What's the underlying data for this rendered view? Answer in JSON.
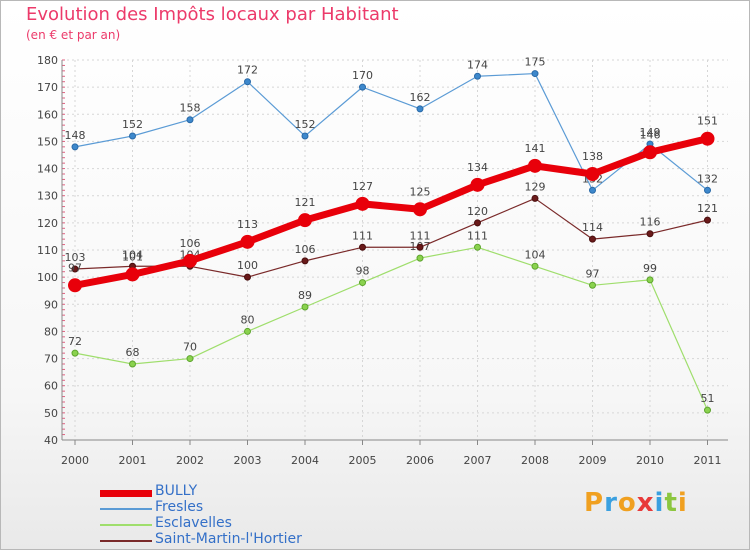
{
  "chart_data": {
    "type": "line",
    "title": "Evolution des Impôts locaux par Habitant",
    "subtitle": "(en € et par an)",
    "xlabel": "",
    "ylabel": "",
    "x": [
      "2000",
      "2001",
      "2002",
      "2003",
      "2004",
      "2005",
      "2006",
      "2007",
      "2008",
      "2009",
      "2010",
      "2011"
    ],
    "ylim": [
      40,
      180
    ],
    "yticks": [
      40,
      50,
      60,
      70,
      80,
      90,
      100,
      110,
      120,
      130,
      140,
      150,
      160,
      170,
      180
    ],
    "grid": true,
    "legend_position": "bottom-left",
    "series": [
      {
        "name": "BULLY",
        "color": "#e8000a",
        "values": [
          97,
          101,
          106,
          113,
          121,
          127,
          125,
          134,
          141,
          138,
          146,
          151
        ]
      },
      {
        "name": "Fresles",
        "color": "#5b9bd5",
        "values": [
          148,
          152,
          158,
          172,
          152,
          170,
          162,
          174,
          175,
          132,
          149,
          132
        ]
      },
      {
        "name": "Esclavelles",
        "color": "#9fde6c",
        "values": [
          72,
          68,
          70,
          80,
          89,
          98,
          107,
          111,
          104,
          97,
          99,
          51
        ]
      },
      {
        "name": "Saint-Martin-l'Hortier",
        "color": "#7a2a2a",
        "values": [
          103,
          104,
          104,
          100,
          106,
          111,
          111,
          120,
          129,
          114,
          116,
          121
        ]
      }
    ]
  },
  "logo": {
    "letters": [
      "P",
      "r",
      "o",
      "x",
      "i",
      "t",
      "i"
    ],
    "colors": [
      "#f0a020",
      "#3aa0e0",
      "#f0a020",
      "#e83a3a",
      "#3aa0e0",
      "#8cc63f",
      "#f0a020"
    ]
  }
}
